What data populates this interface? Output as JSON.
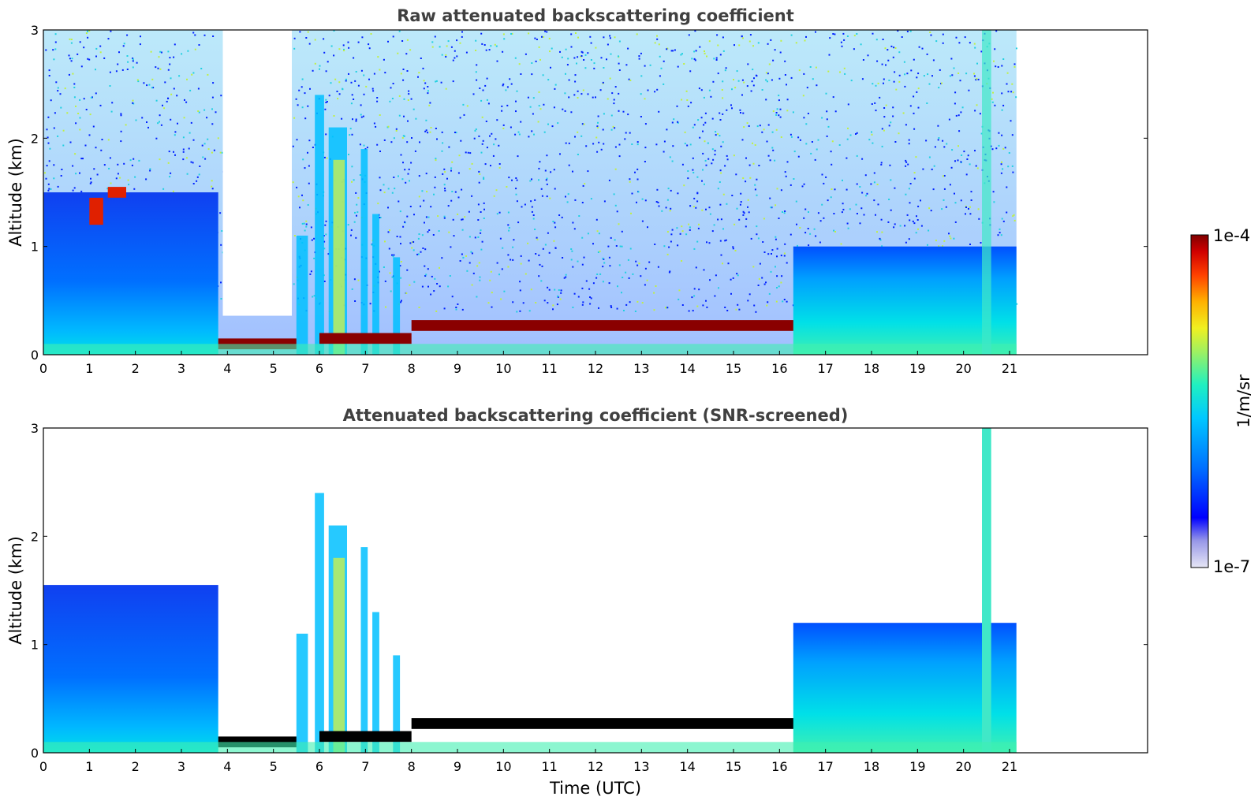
{
  "chart_data": [
    {
      "type": "heatmap",
      "title": "Raw attenuated backscattering coefficient",
      "xlabel": "",
      "ylabel": "Altitude (km)",
      "xlim": [
        0,
        24
      ],
      "ylim": [
        0,
        3
      ],
      "x_ticks": [
        "0",
        "1",
        "2",
        "3",
        "4",
        "5",
        "6",
        "7",
        "8",
        "9",
        "10",
        "11",
        "12",
        "13",
        "14",
        "15",
        "16",
        "17",
        "18",
        "19",
        "20",
        "21"
      ],
      "y_ticks": [
        "0",
        "1",
        "2",
        "3"
      ],
      "data_extent_hours": 21.15,
      "layers": [
        {
          "name": "boundary-layer",
          "x": [
            0,
            3.8
          ],
          "y": [
            0,
            1.5
          ],
          "level": "medium-low"
        },
        {
          "name": "cloud",
          "x": [
            1.0,
            1.3
          ],
          "y": [
            1.2,
            1.45
          ],
          "level": "high"
        },
        {
          "name": "cloud",
          "x": [
            1.4,
            1.8
          ],
          "y": [
            1.45,
            1.55
          ],
          "level": "high"
        },
        {
          "name": "cloud",
          "x": [
            3.8,
            5.5
          ],
          "y": [
            0.05,
            0.15
          ],
          "level": "saturated"
        },
        {
          "name": "cloud",
          "x": [
            8.0,
            16.4
          ],
          "y": [
            0.22,
            0.32
          ],
          "level": "saturated"
        },
        {
          "name": "aerosol",
          "x": [
            16.3,
            21.15
          ],
          "y": [
            0,
            1.0
          ],
          "level": "medium-low"
        }
      ]
    },
    {
      "type": "heatmap",
      "title": "Attenuated backscattering coefficient (SNR-screened)",
      "xlabel": "Time (UTC)",
      "ylabel": "Altitude (km)",
      "xlim": [
        0,
        24
      ],
      "ylim": [
        0,
        3
      ],
      "x_ticks": [
        "0",
        "1",
        "2",
        "3",
        "4",
        "5",
        "6",
        "7",
        "8",
        "9",
        "10",
        "11",
        "12",
        "13",
        "14",
        "15",
        "16",
        "17",
        "18",
        "19",
        "20",
        "21"
      ],
      "y_ticks": [
        "0",
        "1",
        "2",
        "3"
      ],
      "data_extent_hours": 21.15,
      "layers": [
        {
          "name": "boundary-layer",
          "x": [
            0,
            3.8
          ],
          "y": [
            0,
            1.55
          ],
          "level": "medium-low"
        },
        {
          "name": "cloud",
          "x": [
            3.8,
            5.5
          ],
          "y": [
            0.05,
            0.15
          ],
          "level": "saturated-black"
        },
        {
          "name": "cloud",
          "x": [
            8.0,
            16.4
          ],
          "y": [
            0.22,
            0.32
          ],
          "level": "saturated-black"
        },
        {
          "name": "aerosol",
          "x": [
            16.3,
            21.15
          ],
          "y": [
            0,
            1.2
          ],
          "level": "medium-low"
        },
        {
          "name": "plume",
          "x": [
            20.4,
            20.6
          ],
          "y": [
            0,
            3.0
          ],
          "level": "medium"
        }
      ]
    }
  ],
  "colorbar": {
    "label": "1/m/sr",
    "max_label": "1e-4",
    "min_label": "1e-7",
    "colormap": [
      "#e6e6f5",
      "#b8b8ea",
      "#7777e0",
      "#0000ff",
      "#0050ff",
      "#00a0ff",
      "#00e0e8",
      "#40f0b0",
      "#a0f060",
      "#f0f020",
      "#ffb000",
      "#ff5000",
      "#e00000",
      "#800000"
    ]
  },
  "colors": {
    "title": "#404040",
    "saturated_screened": "#000000"
  }
}
